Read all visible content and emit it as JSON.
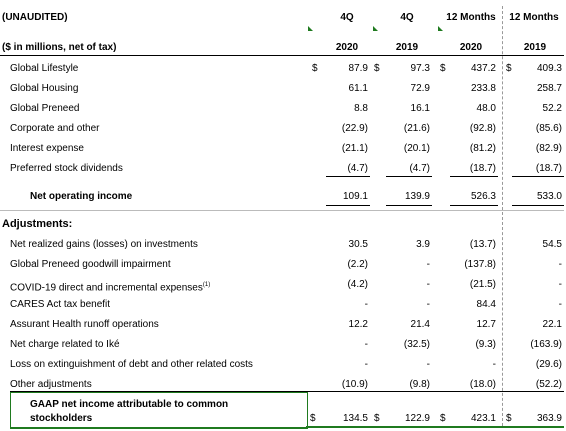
{
  "header": {
    "unaudited": "(UNAUDITED)",
    "units": "($ in millions, net of tax)",
    "columns": [
      {
        "period": "4Q",
        "year": "2020"
      },
      {
        "period": "4Q",
        "year": "2019"
      },
      {
        "period": "12 Months",
        "year": "2020"
      },
      {
        "period": "12 Months",
        "year": "2019"
      }
    ]
  },
  "dollar_sign": "$",
  "rows_top": [
    {
      "label": "Global Lifestyle",
      "v": [
        "87.9",
        "97.3",
        "437.2",
        "409.3"
      ]
    },
    {
      "label": "Global Housing",
      "v": [
        "61.1",
        "72.9",
        "233.8",
        "258.7"
      ]
    },
    {
      "label": "Global Preneed",
      "v": [
        "8.8",
        "16.1",
        "48.0",
        "52.2"
      ]
    },
    {
      "label": "Corporate and other",
      "v": [
        "(22.9)",
        "(21.6)",
        "(92.8)",
        "(85.6)"
      ]
    },
    {
      "label": "Interest expense",
      "v": [
        "(21.1)",
        "(20.1)",
        "(81.2)",
        "(82.9)"
      ]
    },
    {
      "label": "Preferred stock dividends",
      "v": [
        "(4.7)",
        "(4.7)",
        "(18.7)",
        "(18.7)"
      ]
    }
  ],
  "net_operating": {
    "label": "Net operating income",
    "v": [
      "109.1",
      "139.9",
      "526.3",
      "533.0"
    ]
  },
  "adjustments_title": "Adjustments:",
  "adjustments": [
    {
      "label": "Net realized gains (losses) on investments",
      "v": [
        "30.5",
        "3.9",
        "(13.7)",
        "54.5"
      ]
    },
    {
      "label": "Global Preneed goodwill impairment",
      "v": [
        "(2.2)",
        "-",
        "(137.8)",
        "-"
      ]
    },
    {
      "label": "COVID-19 direct and incremental expenses",
      "sup": "(1)",
      "v": [
        "(4.2)",
        "-",
        "(21.5)",
        "-"
      ]
    },
    {
      "label": "CARES Act tax benefit",
      "v": [
        "-",
        "-",
        "84.4",
        "-"
      ]
    },
    {
      "label": "Assurant Health runoff operations",
      "v": [
        "12.2",
        "21.4",
        "12.7",
        "22.1"
      ]
    },
    {
      "label": "Net charge related to Iké",
      "v": [
        "-",
        "(32.5)",
        "(9.3)",
        "(163.9)"
      ]
    },
    {
      "label": "Loss on extinguishment of debt and other related costs",
      "v": [
        "-",
        "-",
        "-",
        "(29.6)"
      ]
    },
    {
      "label": "Other adjustments",
      "v": [
        "(10.9)",
        "(9.8)",
        "(18.0)",
        "(52.2)"
      ]
    }
  ],
  "gaap": {
    "label_line1": "GAAP net income attributable to common",
    "label_line2": "stockholders",
    "v": [
      "134.5",
      "122.9",
      "423.1",
      "363.9"
    ]
  }
}
